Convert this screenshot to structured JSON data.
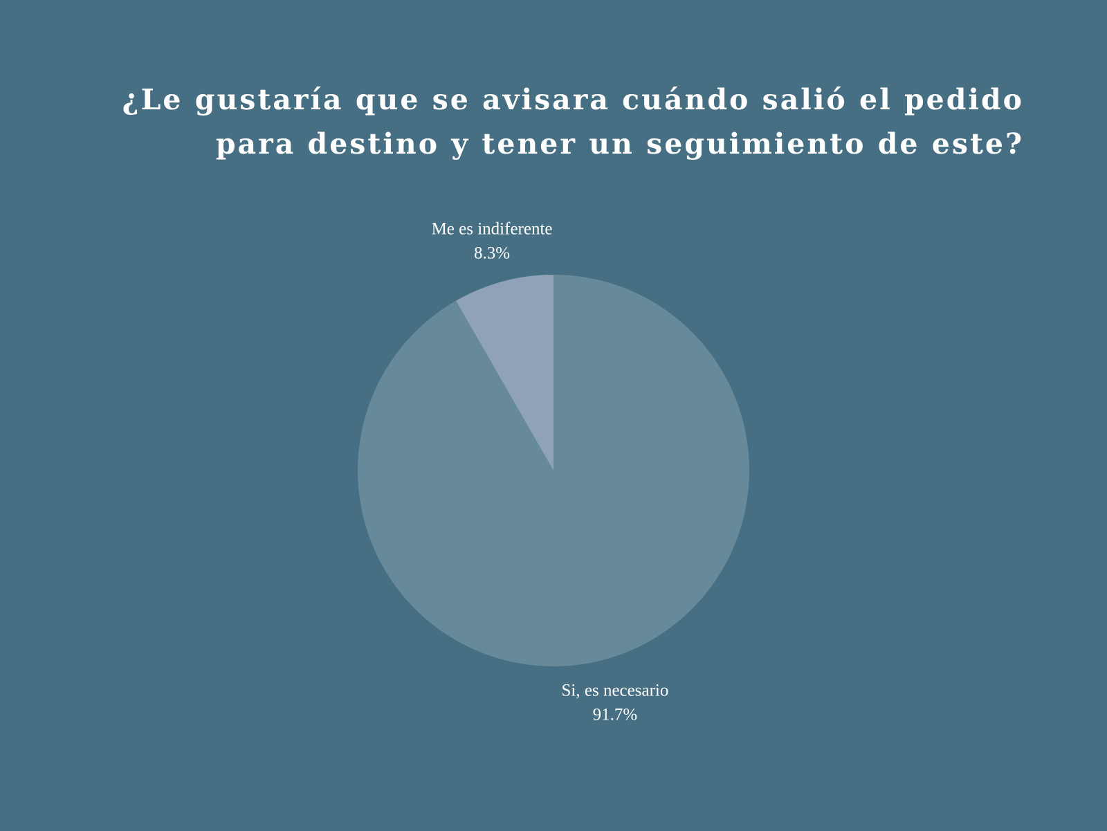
{
  "chart_data": {
    "type": "pie",
    "title": "¿Le gustaría que se avisara cuándo salió el pedido para destino y tener un seguimiento de este?",
    "slices": [
      {
        "label": "Si, es necesario",
        "value": 91.7,
        "value_label": "91.7%",
        "color": "#678a9b"
      },
      {
        "label": "Me es indiferente",
        "value": 8.3,
        "value_label": "8.3%",
        "color": "#8fa2b8"
      }
    ],
    "start": "12 o'clock",
    "direction": "clockwise"
  },
  "colors": {
    "background": "#476f83",
    "text": "#ffffff"
  }
}
